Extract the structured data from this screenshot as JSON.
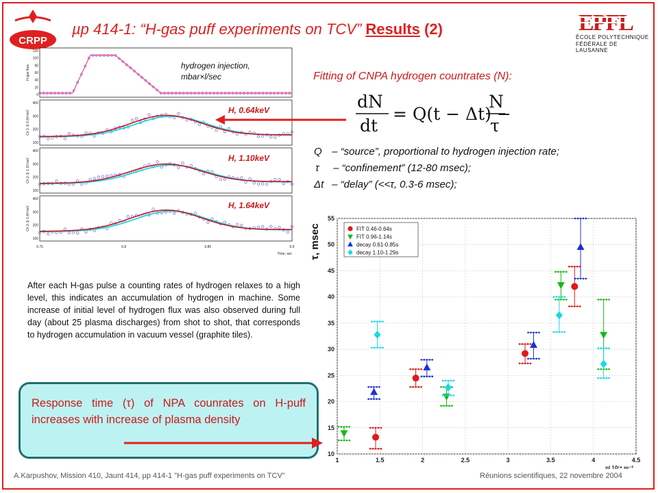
{
  "header": {
    "title_prefix": "µp 414-1: “H-gas puff experiments on TCV”",
    "title_results": "Results",
    "title_num": "(2)",
    "logo_left": "CRPP",
    "logo_right": "EPFL",
    "logo_right_line1": "ÉCOLE POLYTECHNIQUE",
    "logo_right_line2": "FÉDÉRALE DE LAUSANNE"
  },
  "left_plot": {
    "injection_label_1": "hydrogen injection,",
    "injection_label_2": "mbar×l/sec",
    "channels": [
      {
        "label": "H, 0.64keV",
        "ylabel": "Ch 1: E 0.64 keV"
      },
      {
        "label": "H, 1.10keV",
        "ylabel": "Ch 2: E 1.10 keV"
      },
      {
        "label": "H, 1.64keV",
        "ylabel": "Ch 3: E 1.64 keV"
      }
    ],
    "top_ylabel": "H-gas flow",
    "top_ticks": [
      "120",
      "100",
      "80",
      "60",
      "40",
      "20",
      "0"
    ],
    "mid_ticks": [
      "400",
      "300",
      "200",
      "100"
    ],
    "x_ticks": [
      "0.75",
      "0.8",
      "0.85",
      "0.9"
    ],
    "xlabel": "Time, sec"
  },
  "fit": {
    "title": "Fitting of CNPA hydrogen countrates (N):",
    "defs": [
      {
        "sym": "Q",
        "text": "– “source”, proportional to hydrogen injection rate;"
      },
      {
        "sym": "τ",
        "text": "– “confinement” (12-80 msec);"
      },
      {
        "sym": "Δt",
        "text": "– “delay” (<<τ, 0.3-6 msec);"
      }
    ]
  },
  "body_text": "After each H-gas pulse a counting rates of hydrogen relaxes to a high level, this indicates an accumulation of hydrogen in machine. Some increase of initial level of hydrogen flux was also observed during full day (about 25 plasma discharges) from shot to shot, that corresponds to hydrogen accumulation in vacuum vessel (graphite tiles).",
  "callout": "Response time (τ) of NPA counrates on H-puff increases with increase of plasma density",
  "footer": {
    "left": "A.Karpushov, Mission 410, Jaunt 414, µp 414-1 \"H-gas puff experiments on TCV\"",
    "right": "Réunions scientifiques, 22 novembre 2004"
  },
  "chart_data": {
    "type": "scatter",
    "ylabel": "τ, msec",
    "xlabel": "nl 10¹⁹ m⁻²",
    "xlim": [
      1,
      4.5
    ],
    "ylim": [
      10,
      55
    ],
    "x_ticks": [
      "1",
      "1.5",
      "2",
      "2.5",
      "3",
      "3.5",
      "4",
      "4.5"
    ],
    "y_ticks": [
      "10",
      "15",
      "20",
      "25",
      "30",
      "35",
      "40",
      "45",
      "50",
      "55"
    ],
    "legend_position": "top-left",
    "grid": true,
    "series": [
      {
        "name": "FIT 0.46-0.64s",
        "marker": "circle",
        "color": "#e01b1b",
        "points": [
          {
            "x": 1.45,
            "y": 13.2,
            "lo": 11.0,
            "hi": 15.0
          },
          {
            "x": 1.92,
            "y": 24.5,
            "lo": 22.8,
            "hi": 26.2
          },
          {
            "x": 3.2,
            "y": 29.2,
            "lo": 27.3,
            "hi": 31.0
          },
          {
            "x": 3.78,
            "y": 42.0,
            "lo": 38.2,
            "hi": 45.8
          }
        ]
      },
      {
        "name": "FIT 0.96-1.14s",
        "marker": "triangle-down",
        "color": "#18b818",
        "points": [
          {
            "x": 1.08,
            "y": 14.0,
            "lo": 12.6,
            "hi": 15.2
          },
          {
            "x": 2.28,
            "y": 21.0,
            "lo": 19.2,
            "hi": 22.8
          },
          {
            "x": 3.62,
            "y": 42.3,
            "lo": 39.5,
            "hi": 44.8
          },
          {
            "x": 4.12,
            "y": 32.8,
            "lo": 26.2,
            "hi": 39.5
          }
        ]
      },
      {
        "name": "decay 0.61-0.85s",
        "marker": "triangle-up",
        "color": "#1f2fd6",
        "points": [
          {
            "x": 1.43,
            "y": 21.8,
            "lo": 20.5,
            "hi": 22.8
          },
          {
            "x": 2.05,
            "y": 26.5,
            "lo": 24.8,
            "hi": 28.0
          },
          {
            "x": 3.3,
            "y": 30.8,
            "lo": 28.2,
            "hi": 33.2
          },
          {
            "x": 3.85,
            "y": 49.5,
            "lo": 43.5,
            "hi": 55.0
          }
        ]
      },
      {
        "name": "decay 1.10-1.29s",
        "marker": "diamond",
        "color": "#19d9e8",
        "points": [
          {
            "x": 1.47,
            "y": 32.8,
            "lo": 30.3,
            "hi": 35.3
          },
          {
            "x": 2.3,
            "y": 22.7,
            "lo": 21.2,
            "hi": 24.0
          },
          {
            "x": 3.6,
            "y": 36.5,
            "lo": 33.3,
            "hi": 40.0
          },
          {
            "x": 4.12,
            "y": 27.2,
            "lo": 24.5,
            "hi": 30.2
          }
        ]
      }
    ]
  }
}
